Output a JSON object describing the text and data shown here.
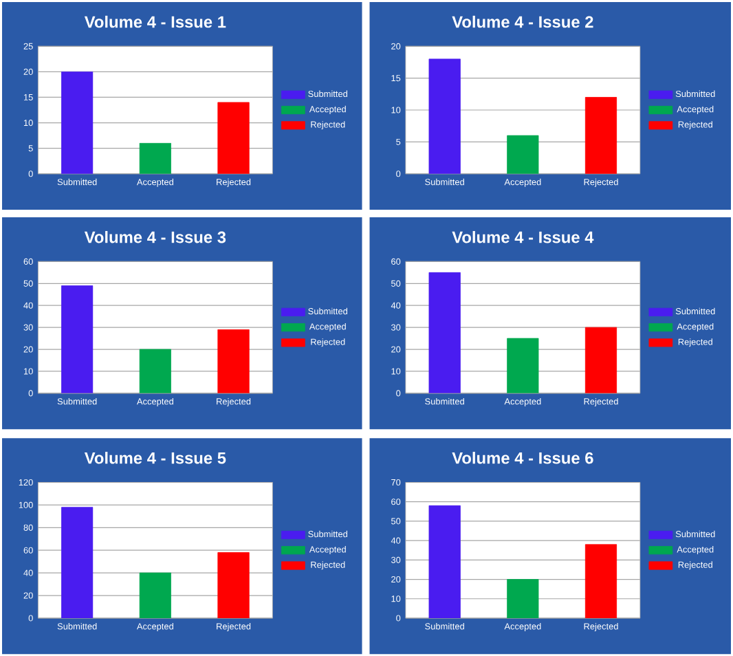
{
  "chart_data": [
    {
      "type": "bar",
      "title": "Volume 4 - Issue 1",
      "categories": [
        "Submitted",
        "Accepted",
        "Rejected"
      ],
      "ylim": [
        0,
        25
      ],
      "yticks": [
        0,
        5,
        10,
        15,
        20,
        25
      ],
      "grid": "y",
      "legend": "right",
      "series": [
        {
          "name": "Submitted",
          "color": "#4a1cf0",
          "values": [
            20,
            null,
            null
          ]
        },
        {
          "name": "Accepted",
          "color": "#00a84f",
          "values": [
            null,
            6,
            null
          ]
        },
        {
          "name": "Rejected",
          "color": "#ff0000",
          "values": [
            null,
            null,
            14
          ]
        }
      ]
    },
    {
      "type": "bar",
      "title": "Volume 4 - Issue 2",
      "categories": [
        "Submitted",
        "Accepted",
        "Rejected"
      ],
      "ylim": [
        0,
        20
      ],
      "yticks": [
        0,
        5,
        10,
        15,
        20
      ],
      "grid": "y",
      "legend": "right",
      "series": [
        {
          "name": "Submitted",
          "color": "#4a1cf0",
          "values": [
            18,
            null,
            null
          ]
        },
        {
          "name": "Accepted",
          "color": "#00a84f",
          "values": [
            null,
            6,
            null
          ]
        },
        {
          "name": "Rejected",
          "color": "#ff0000",
          "values": [
            null,
            null,
            12
          ]
        }
      ]
    },
    {
      "type": "bar",
      "title": "Volume 4 - Issue 3",
      "categories": [
        "Submitted",
        "Accepted",
        "Rejected"
      ],
      "ylim": [
        0,
        60
      ],
      "yticks": [
        0,
        10,
        20,
        30,
        40,
        50,
        60
      ],
      "grid": "y",
      "legend": "right",
      "series": [
        {
          "name": "Submitted",
          "color": "#4a1cf0",
          "values": [
            49,
            null,
            null
          ]
        },
        {
          "name": "Accepted",
          "color": "#00a84f",
          "values": [
            null,
            20,
            null
          ]
        },
        {
          "name": "Rejected",
          "color": "#ff0000",
          "values": [
            null,
            null,
            29
          ]
        }
      ]
    },
    {
      "type": "bar",
      "title": "Volume 4 - Issue 4",
      "categories": [
        "Submitted",
        "Accepted",
        "Rejected"
      ],
      "ylim": [
        0,
        60
      ],
      "yticks": [
        0,
        10,
        20,
        30,
        40,
        50,
        60
      ],
      "grid": "y",
      "legend": "right",
      "series": [
        {
          "name": "Submitted",
          "color": "#4a1cf0",
          "values": [
            55,
            null,
            null
          ]
        },
        {
          "name": "Accepted",
          "color": "#00a84f",
          "values": [
            null,
            25,
            null
          ]
        },
        {
          "name": "Rejected",
          "color": "#ff0000",
          "values": [
            null,
            null,
            30
          ]
        }
      ]
    },
    {
      "type": "bar",
      "title": "Volume 4 - Issue 5",
      "categories": [
        "Submitted",
        "Accepted",
        "Rejected"
      ],
      "ylim": [
        0,
        120
      ],
      "yticks": [
        0,
        20,
        40,
        60,
        80,
        100,
        120
      ],
      "grid": "y",
      "legend": "right",
      "series": [
        {
          "name": "Submitted",
          "color": "#4a1cf0",
          "values": [
            98,
            null,
            null
          ]
        },
        {
          "name": "Accepted",
          "color": "#00a84f",
          "values": [
            null,
            40,
            null
          ]
        },
        {
          "name": "Rejected",
          "color": "#ff0000",
          "values": [
            null,
            null,
            58
          ]
        }
      ]
    },
    {
      "type": "bar",
      "title": "Volume 4 - Issue 6",
      "categories": [
        "Submitted",
        "Accepted",
        "Rejected"
      ],
      "ylim": [
        0,
        70
      ],
      "yticks": [
        0,
        10,
        20,
        30,
        40,
        50,
        60,
        70
      ],
      "grid": "y",
      "legend": "right",
      "series": [
        {
          "name": "Submitted",
          "color": "#4a1cf0",
          "values": [
            58,
            null,
            null
          ]
        },
        {
          "name": "Accepted",
          "color": "#00a84f",
          "values": [
            null,
            20,
            null
          ]
        },
        {
          "name": "Rejected",
          "color": "#ff0000",
          "values": [
            null,
            null,
            38
          ]
        }
      ]
    }
  ]
}
